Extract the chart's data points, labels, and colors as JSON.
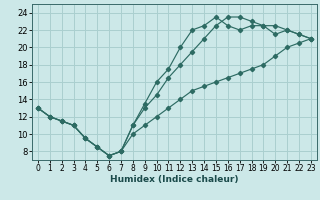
{
  "title": "",
  "xlabel": "Humidex (Indice chaleur)",
  "bg_color": "#cce8e8",
  "grid_color": "#aacfcf",
  "line_color": "#2d6b63",
  "xlim": [
    -0.5,
    23.5
  ],
  "ylim": [
    7.0,
    25.0
  ],
  "xticks": [
    0,
    1,
    2,
    3,
    4,
    5,
    6,
    7,
    8,
    9,
    10,
    11,
    12,
    13,
    14,
    15,
    16,
    17,
    18,
    19,
    20,
    21,
    22,
    23
  ],
  "yticks": [
    8,
    10,
    12,
    14,
    16,
    18,
    20,
    22,
    24
  ],
  "line1_x": [
    0,
    1,
    2,
    3,
    4,
    5,
    6,
    7,
    8,
    9,
    10,
    11,
    12,
    13,
    14,
    15,
    16,
    17,
    18,
    19,
    20,
    21,
    22,
    23
  ],
  "line1_y": [
    13,
    12,
    11.5,
    11,
    9.5,
    8.5,
    7.5,
    8,
    10,
    11,
    12,
    13,
    14,
    15,
    15.5,
    16,
    16.5,
    17,
    17.5,
    18,
    19,
    20,
    20.5,
    21
  ],
  "line2_x": [
    0,
    1,
    2,
    3,
    4,
    5,
    6,
    7,
    8,
    9,
    10,
    11,
    12,
    13,
    14,
    15,
    16,
    17,
    18,
    19,
    20,
    21,
    22,
    23
  ],
  "line2_y": [
    13,
    12,
    11.5,
    11,
    9.5,
    8.5,
    7.5,
    8,
    11,
    13,
    14.5,
    16.5,
    18,
    19.5,
    21,
    22.5,
    23.5,
    23.5,
    23,
    22.5,
    22.5,
    22,
    21.5,
    21
  ],
  "line3_x": [
    0,
    1,
    2,
    3,
    4,
    5,
    6,
    7,
    8,
    9,
    10,
    11,
    12,
    13,
    14,
    15,
    16,
    17,
    18,
    19,
    20,
    21,
    22,
    23
  ],
  "line3_y": [
    13,
    12,
    11.5,
    11,
    9.5,
    8.5,
    7.5,
    8,
    11,
    13.5,
    16,
    17.5,
    20,
    22,
    22.5,
    23.5,
    22.5,
    22,
    22.5,
    22.5,
    21.5,
    22,
    21.5,
    21
  ],
  "tick_fontsize": 5.5,
  "xlabel_fontsize": 6.5
}
